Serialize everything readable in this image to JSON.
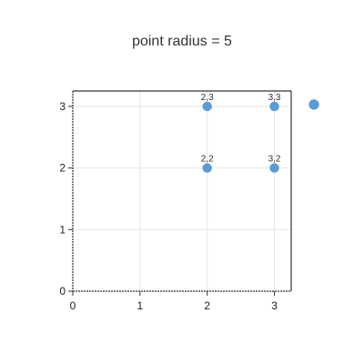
{
  "chart_data": {
    "type": "scatter",
    "title": "point radius = 5",
    "xlabel": "",
    "ylabel": "",
    "xlim": [
      0,
      3.25
    ],
    "ylim": [
      0,
      3.25
    ],
    "x_ticks": [
      0,
      1,
      2,
      3
    ],
    "y_ticks": [
      0,
      1,
      2,
      3
    ],
    "grid": true,
    "series": [
      {
        "values": [
          {
            "x": 2,
            "y": 3,
            "label": "2,3"
          },
          {
            "x": 3,
            "y": 3,
            "label": "3,3"
          },
          {
            "x": 2,
            "y": 2,
            "label": "2,2"
          },
          {
            "x": 3,
            "y": 2,
            "label": "3,2"
          }
        ]
      }
    ],
    "legend": {
      "placement": "right",
      "marker_color": "#5b9bd5"
    },
    "colors": {
      "point": "#5b9bd5",
      "grid": "#e5e5e5",
      "axis": "#333333"
    }
  }
}
